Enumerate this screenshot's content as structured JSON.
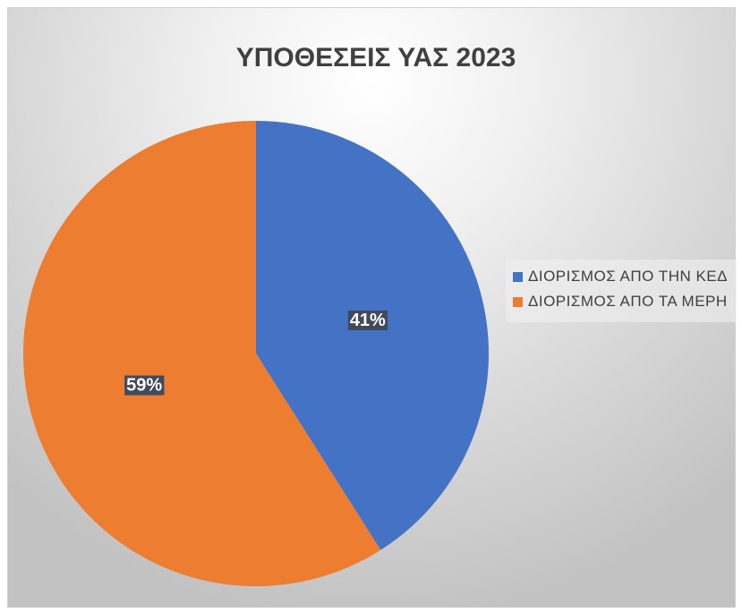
{
  "chart_data": {
    "type": "pie",
    "title": "ΥΠΟΘΕΣΕΙΣ ΥΑΣ 2023",
    "categories": [
      "ΔΙΟΡΙΣΜΟΣ ΑΠΟ ΤΗΝ ΚΕΔ",
      "ΔΙΟΡΙΣΜΟΣ ΑΠΟ ΤΑ ΜΕΡΗ"
    ],
    "values": [
      41,
      59
    ],
    "value_labels": [
      "41%",
      "59%"
    ],
    "colors": [
      "#4472c4",
      "#ed7d31"
    ],
    "legend": "right"
  }
}
